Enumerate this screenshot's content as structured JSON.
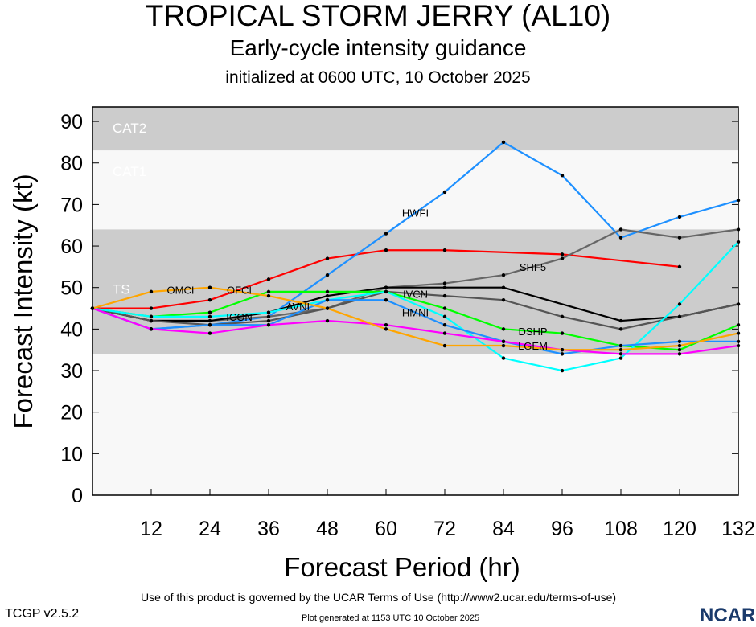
{
  "header": {
    "title": "TROPICAL STORM JERRY (AL10)",
    "subtitle": "Early-cycle intensity guidance",
    "initialized": "initialized at 0600 UTC, 10 October 2025"
  },
  "footer": {
    "terms": "Use of this product is governed by the UCAR Terms of Use (http://www2.ucar.edu/terms-of-use)",
    "generated": "Plot generated at 1153 UTC   10 October 2025",
    "version": "TCGP v2.5.2",
    "logo": "NCAR"
  },
  "chart_data": {
    "type": "line",
    "title": "TROPICAL STORM JERRY (AL10)",
    "xlabel": "Forecast Period (hr)",
    "ylabel": "Forecast Intensity (kt)",
    "xlim": [
      0,
      132
    ],
    "ylim": [
      0,
      93.5
    ],
    "xticks": [
      12,
      24,
      36,
      48,
      60,
      72,
      84,
      96,
      108,
      120,
      132
    ],
    "yticks": [
      0,
      10,
      20,
      30,
      40,
      50,
      60,
      70,
      80,
      90
    ],
    "bands": [
      {
        "label": "CAT2",
        "from": 83,
        "to": 93.5,
        "color": "#cccccc"
      },
      {
        "label": "CAT1",
        "from": 64,
        "to": 83,
        "color": "#f8f8f8"
      },
      {
        "label": "TS",
        "from": 34,
        "to": 64,
        "color": "#cccccc"
      },
      {
        "label": "",
        "from": 0,
        "to": 34,
        "color": "#f8f8f8"
      }
    ],
    "x": [
      0,
      12,
      24,
      36,
      48,
      60,
      72,
      84,
      96,
      108,
      120,
      132
    ],
    "series": [
      {
        "name": "OFCI",
        "color": "#ff0000",
        "values": [
          45,
          45,
          47,
          52,
          57,
          59,
          59,
          null,
          58,
          null,
          55,
          null
        ]
      },
      {
        "name": "HWFI",
        "color": "#1e90ff",
        "values": [
          45,
          40,
          41,
          43,
          53,
          63,
          73,
          85,
          77,
          62,
          67,
          71
        ]
      },
      {
        "name": "SHF5",
        "color": "#666666",
        "values": [
          45,
          42,
          42,
          43,
          45,
          50,
          51,
          53,
          57,
          64,
          62,
          64
        ]
      },
      {
        "name": "ICON",
        "color": "#000000",
        "values": [
          45,
          42,
          42,
          44,
          48,
          50,
          50,
          50,
          null,
          42,
          43,
          46
        ]
      },
      {
        "name": "IVCN",
        "color": "#555555",
        "values": [
          45,
          42,
          41,
          42,
          45,
          49,
          48,
          47,
          43,
          40,
          43,
          46
        ]
      },
      {
        "name": "DSHP",
        "color": "#00ff00",
        "values": [
          45,
          43,
          44,
          49,
          49,
          49,
          45,
          40,
          39,
          36,
          35,
          41
        ]
      },
      {
        "name": "AVNI",
        "color": "#00ffff",
        "values": [
          45,
          43,
          43,
          44,
          47,
          49,
          43,
          33,
          30,
          33,
          46,
          61
        ]
      },
      {
        "name": "HMNI",
        "color": "#1e90ff",
        "values": [
          45,
          40,
          41,
          41,
          47,
          47,
          41,
          37,
          34,
          36,
          37,
          37
        ]
      },
      {
        "name": "LGEM",
        "color": "#ff00ff",
        "values": [
          45,
          40,
          39,
          41,
          42,
          41,
          39,
          37,
          35,
          34,
          34,
          36
        ]
      },
      {
        "name": "OMCI",
        "color": "#ffa500",
        "values": [
          45,
          49,
          50,
          48,
          45,
          40,
          36,
          36,
          35,
          35,
          36,
          39
        ]
      }
    ]
  }
}
